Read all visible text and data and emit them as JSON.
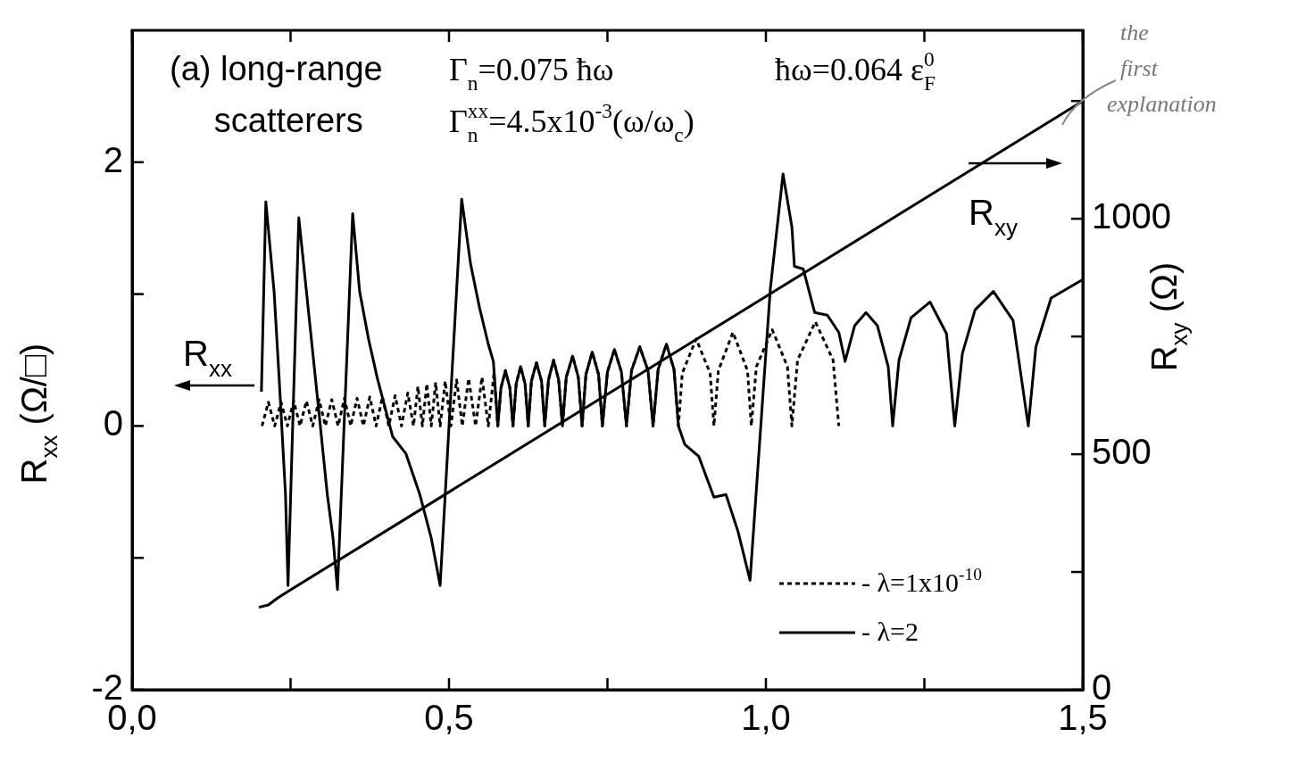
{
  "chart_data": {
    "type": "line",
    "xlim": [
      0,
      1.5
    ],
    "xticks": [
      {
        "value": 0,
        "label": "0,0"
      },
      {
        "value": 0.25,
        "label": null
      },
      {
        "value": 0.5,
        "label": "0,5"
      },
      {
        "value": 0.75,
        "label": null
      },
      {
        "value": 1,
        "label": "1,0"
      },
      {
        "value": 1.25,
        "label": null
      },
      {
        "value": 1.5,
        "label": "1,5"
      }
    ],
    "ylim": [
      -2,
      3
    ],
    "yticks": [
      -2,
      {
        "value": -1,
        "label": null
      },
      0,
      {
        "value": 1,
        "label": null
      },
      2
    ],
    "y2lim": [
      0,
      1400
    ],
    "y2ticks": [
      0,
      {
        "value": 250,
        "label": null
      },
      500,
      {
        "value": 750,
        "label": null
      },
      1000,
      {
        "value": 1250,
        "label": null
      }
    ],
    "ylabel": "R$_{xx}$ (Ω/□)",
    "y2label": "R$_{xy}$ (Ω)",
    "legend": "bottom right",
    "grid": false,
    "annotations": [
      "(a) long-range scatterers",
      "Γ$_{n}$=0.075 ħω",
      "ħω=0.064 ε$_{F}$$^{0}$",
      "Γ$_{n}$$^{xx}$=4.5x10$^{-3}$(ω/ω$_{c}$)",
      "R$_{xx}$",
      "the first explanation"
    ],
    "series": [
      {
        "name": "- λ=1x10$^{-10}$",
        "color": "#000000",
        "line_style": "dotted",
        "x": [
          0.205,
          0.215,
          0.225,
          0.235,
          0.245,
          0.255,
          0.265,
          0.275,
          0.285,
          0.295,
          0.305,
          0.315,
          0.325,
          0.335,
          0.345,
          0.355,
          0.365,
          0.375,
          0.385,
          0.395,
          0.405,
          0.415,
          0.425,
          0.435,
          0.444,
          0.451,
          0.458,
          0.465,
          0.472,
          0.479,
          0.486,
          0.494,
          0.503,
          0.512,
          0.521,
          0.531,
          0.542,
          0.552,
          0.562,
          0.571,
          0.577,
          0.582,
          0.589,
          0.596,
          0.601,
          0.606,
          0.613,
          0.62,
          0.625,
          0.63,
          0.638,
          0.646,
          0.651,
          0.657,
          0.665,
          0.673,
          0.679,
          0.685,
          0.695,
          0.704,
          0.71,
          0.716,
          0.726,
          0.736,
          0.742,
          0.75,
          0.761,
          0.772,
          0.78,
          0.788,
          0.801,
          0.814,
          0.822,
          0.83,
          0.843,
          0.855,
          0.862,
          0.868,
          0.89,
          0.912,
          0.918,
          0.925,
          0.948,
          0.971,
          0.977,
          0.985,
          1.01,
          1.034,
          1.041,
          1.05,
          1.078,
          1.106,
          1.115
        ],
        "values": [
          0,
          0.18,
          0,
          0.18,
          0,
          0.19,
          0,
          0.19,
          0,
          0.2,
          0,
          0.2,
          0,
          0.21,
          0,
          0.21,
          0,
          0.22,
          0,
          0.22,
          0,
          0.23,
          0,
          0.25,
          0,
          0.3,
          0,
          0.32,
          0,
          0.33,
          0,
          0.34,
          0,
          0.35,
          0,
          0.36,
          0,
          0.37,
          0,
          0.4,
          0,
          0.29,
          0.42,
          0.29,
          0,
          0.32,
          0.45,
          0.32,
          0,
          0.34,
          0.48,
          0.34,
          0,
          0.35,
          0.5,
          0.35,
          0,
          0.37,
          0.53,
          0.37,
          0,
          0.39,
          0.56,
          0.39,
          0,
          0.41,
          0.58,
          0.41,
          0,
          0.42,
          0.6,
          0.42,
          0,
          0.43,
          0.62,
          0.43,
          0,
          0.4,
          0.66,
          0.4,
          0,
          0.42,
          0.71,
          0.42,
          0,
          0.45,
          0.73,
          0.45,
          0,
          0.5,
          0.79,
          0.5,
          0
        ]
      },
      {
        "name": "- λ=2",
        "color": "#000000",
        "line_style": "solid",
        "x": [
          0.204,
          0.211,
          0.224,
          0.232,
          0.242,
          0.246,
          0.263,
          0.28,
          0.294,
          0.308,
          0.317,
          0.324,
          0.348,
          0.359,
          0.373,
          0.387,
          0.411,
          0.432,
          0.454,
          0.472,
          0.486,
          0.52,
          0.534,
          0.548,
          0.562,
          0.57,
          0.577,
          0.582,
          0.589,
          0.596,
          0.601,
          0.606,
          0.613,
          0.62,
          0.625,
          0.63,
          0.638,
          0.646,
          0.651,
          0.657,
          0.665,
          0.673,
          0.679,
          0.685,
          0.695,
          0.704,
          0.71,
          0.716,
          0.726,
          0.736,
          0.742,
          0.75,
          0.761,
          0.772,
          0.78,
          0.788,
          0.801,
          0.814,
          0.822,
          0.83,
          0.843,
          0.855,
          0.862,
          0.872,
          0.894,
          0.918,
          0.937,
          0.956,
          0.975,
          1.007,
          1.027,
          1.041,
          1.045,
          1.059,
          1.077,
          1.097,
          1.115,
          1.125,
          1.14,
          1.158,
          1.176,
          1.193,
          1.2,
          1.21,
          1.229,
          1.259,
          1.285,
          1.298,
          1.31,
          1.33,
          1.359,
          1.39,
          1.414,
          1.426,
          1.45,
          1.5
        ],
        "values": [
          0.26,
          1.7,
          1.02,
          0.36,
          -0.52,
          -1.21,
          1.58,
          0.79,
          0.14,
          -0.52,
          -0.85,
          -1.24,
          1.61,
          1.02,
          0.66,
          0.36,
          -0.08,
          -0.21,
          -0.52,
          -0.85,
          -1.21,
          1.72,
          1.23,
          0.9,
          0.62,
          0.49,
          0,
          0.29,
          0.42,
          0.29,
          0,
          0.32,
          0.45,
          0.32,
          0,
          0.34,
          0.48,
          0.34,
          0,
          0.35,
          0.5,
          0.35,
          0,
          0.37,
          0.53,
          0.37,
          0,
          0.39,
          0.56,
          0.39,
          0,
          0.41,
          0.58,
          0.41,
          0,
          0.42,
          0.6,
          0.42,
          0,
          0.43,
          0.62,
          0.43,
          0,
          -0.14,
          -0.23,
          -0.54,
          -0.52,
          -0.8,
          -1.17,
          1.04,
          1.91,
          1.51,
          1.21,
          1.19,
          0.86,
          0.84,
          0.71,
          0.49,
          0.76,
          0.86,
          0.76,
          0.45,
          0,
          0.5,
          0.82,
          0.94,
          0.7,
          0,
          0.55,
          0.88,
          1.02,
          0.8,
          0,
          0.6,
          0.97,
          1.11
        ]
      },
      {
        "name": "R$_{xy}$",
        "color": "#000000",
        "axis": "y2",
        "line_style": "solid",
        "x": [
          0.2,
          0.215,
          0.23,
          0.245,
          1.5
        ],
        "values": [
          175,
          180,
          195,
          208,
          1250
        ]
      }
    ]
  }
}
